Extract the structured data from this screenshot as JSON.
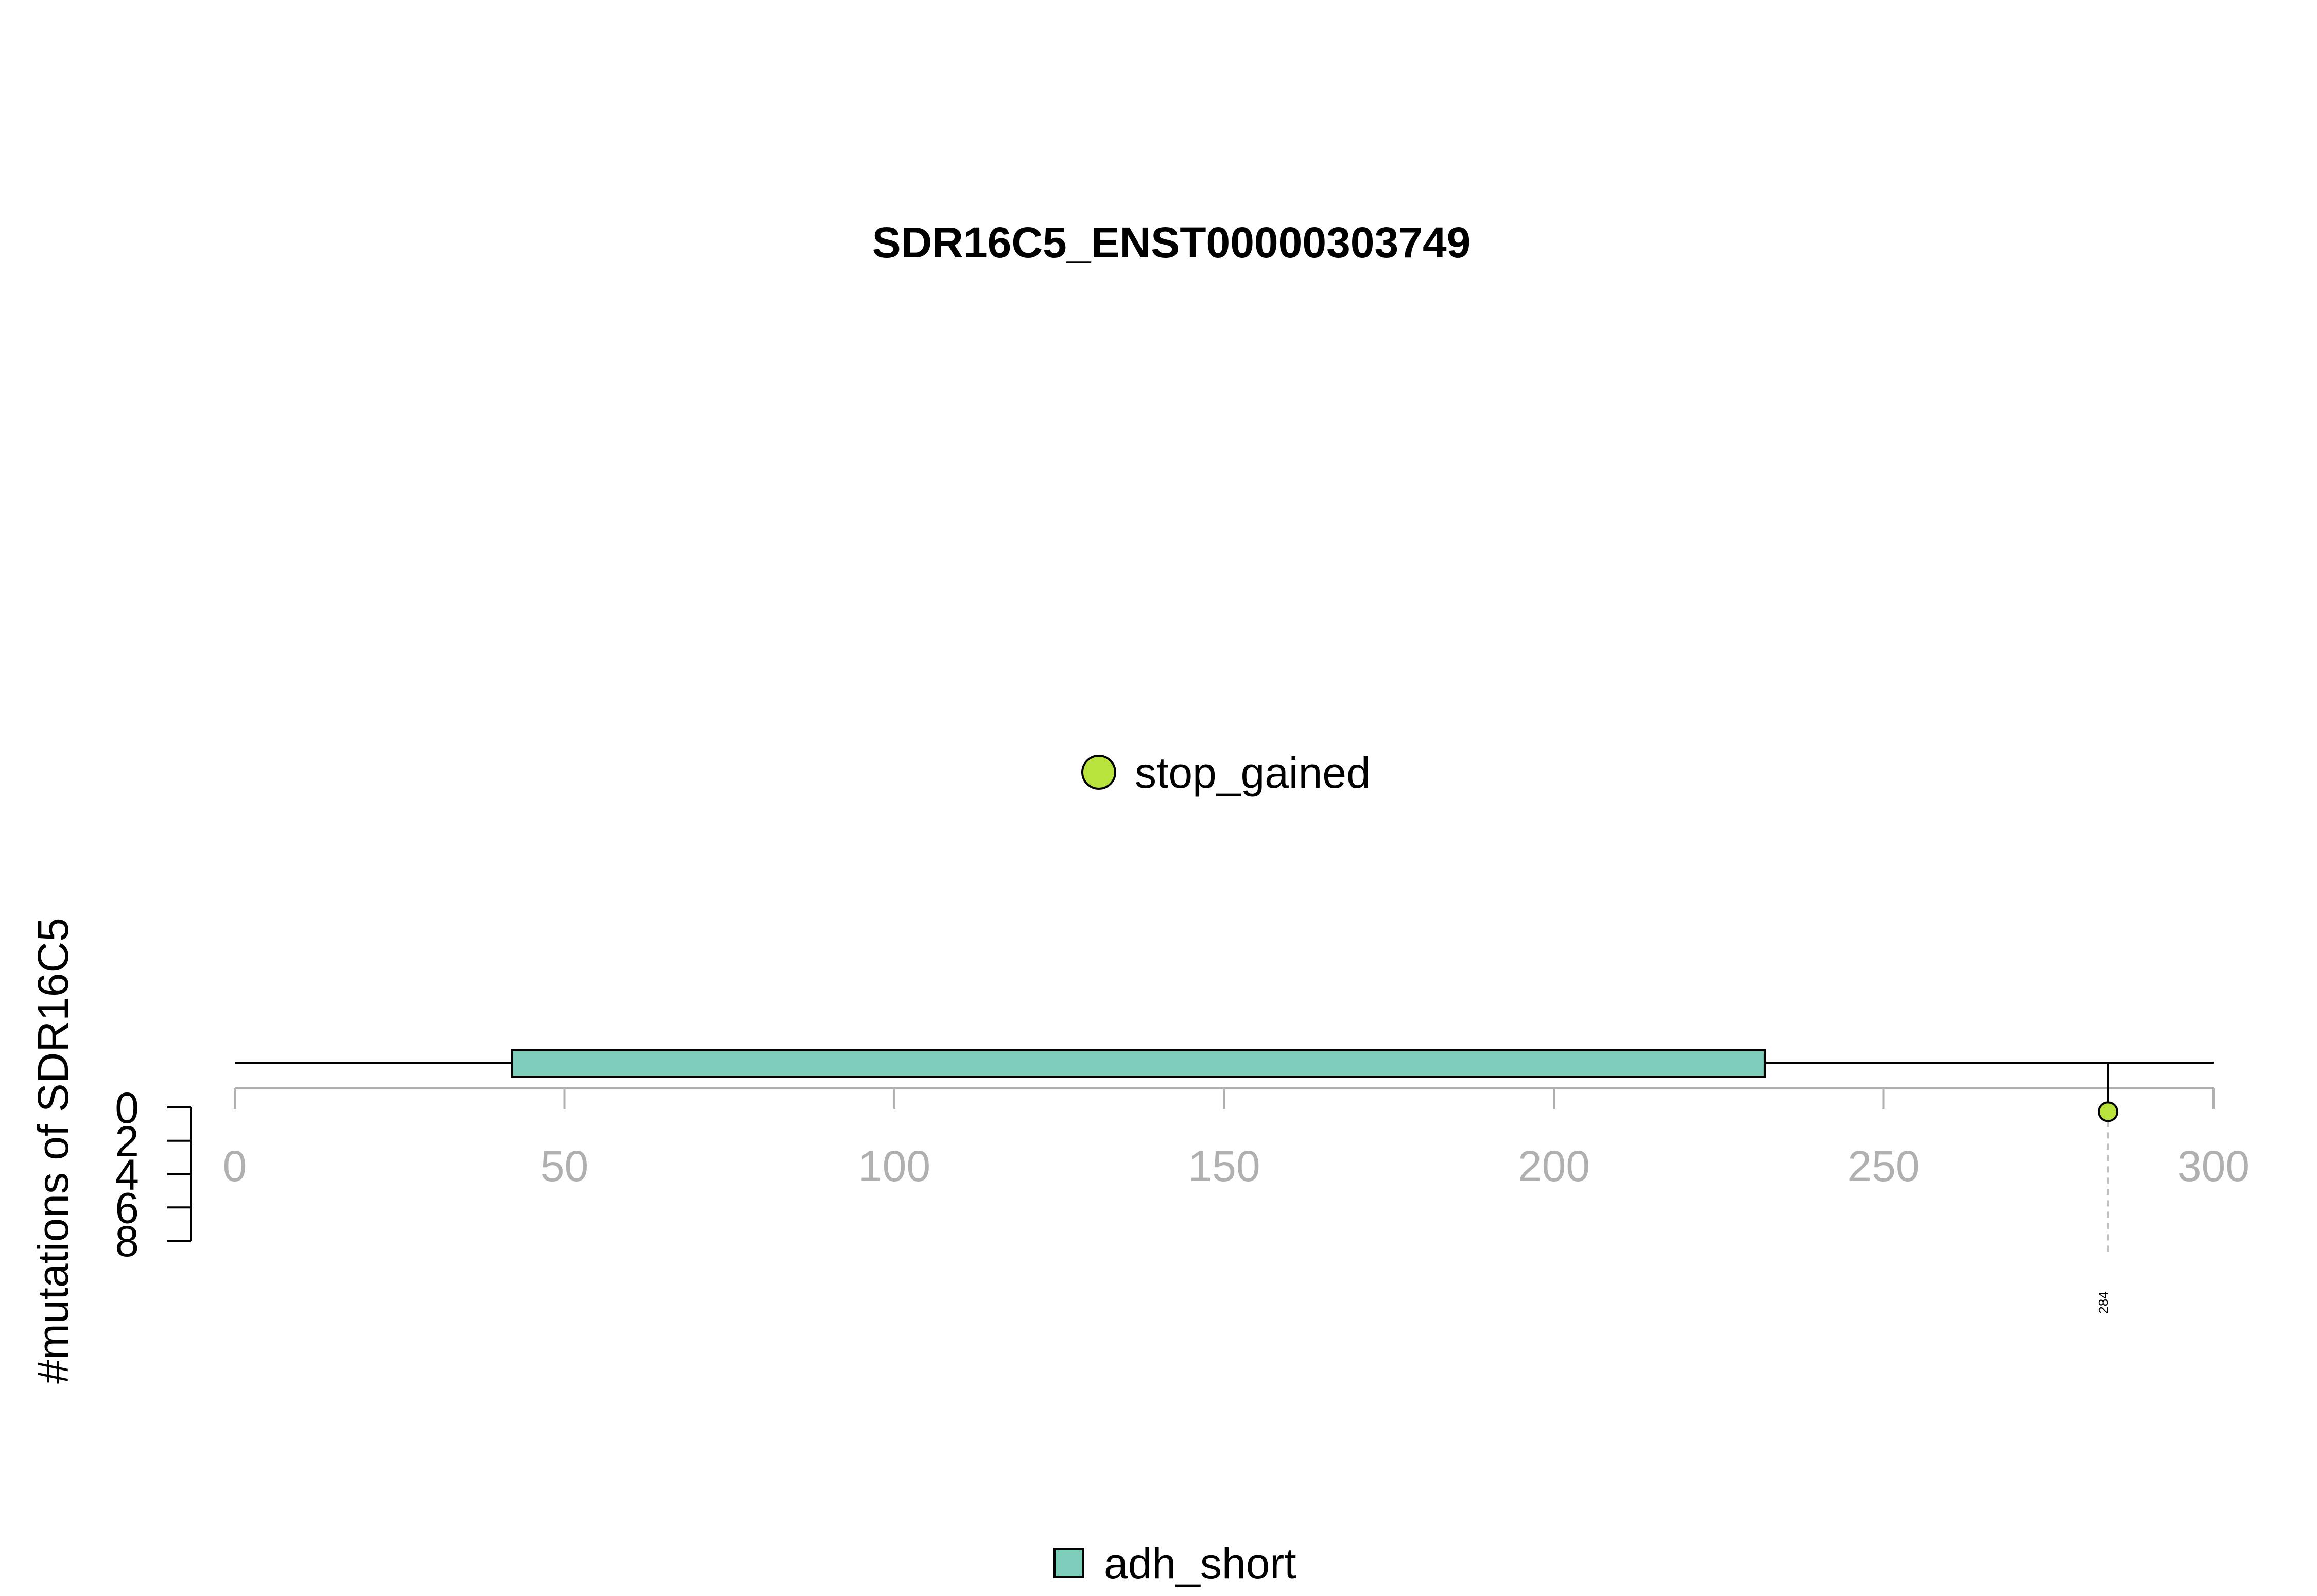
{
  "colors": {
    "domain_fill": "#7fcdbb",
    "mutation_fill": "#b8e23c",
    "axis_gray": "#b0b0b0",
    "line_black": "#000000"
  },
  "chart_data": {
    "type": "lollipop",
    "title": "SDR16C5_ENST00000303749",
    "ylabel": "#mutations of SDR16C5",
    "x_range": [
      0,
      300
    ],
    "x_ticks": [
      "0",
      "50",
      "100",
      "150",
      "200",
      "250",
      "300"
    ],
    "y_range": [
      0,
      8
    ],
    "y_ticks": [
      "0",
      "2",
      "4",
      "6",
      "8"
    ],
    "protein_length": 300,
    "domains": [
      {
        "name": "adh_short",
        "start": 42,
        "end": 232
      }
    ],
    "mutations": [
      {
        "position": 284,
        "label": "284",
        "count": 1,
        "type": "stop_gained"
      }
    ],
    "mutation_legend": [
      "stop_gained"
    ],
    "domain_legend": [
      "adh_short"
    ]
  }
}
